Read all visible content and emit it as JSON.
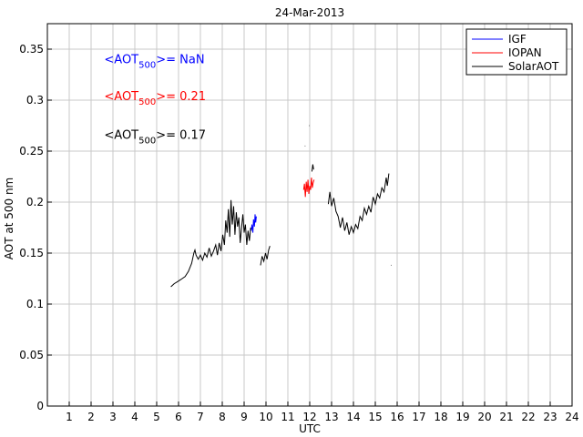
{
  "chart_data": {
    "type": "line",
    "title": "24-Mar-2013",
    "xlabel": "UTC",
    "ylabel": "AOT at 500 nm",
    "xlim": [
      0,
      24
    ],
    "ylim": [
      0,
      0.375
    ],
    "xticks": [
      1,
      2,
      3,
      4,
      5,
      6,
      7,
      8,
      9,
      10,
      11,
      12,
      13,
      14,
      15,
      16,
      17,
      18,
      19,
      20,
      21,
      22,
      23,
      24
    ],
    "yticks": [
      0,
      0.05,
      0.1,
      0.15,
      0.2,
      0.25,
      0.3,
      0.35
    ],
    "ytick_labels": [
      "0",
      "0.05",
      "0.1",
      "0.15",
      "0.2",
      "0.25",
      "0.3",
      "0.35"
    ],
    "grid": true,
    "legend_position": "top-right",
    "annotations": [
      {
        "series": "IGF",
        "prefix": "<AOT",
        "sub": "500",
        "suffix": ">=  NaN",
        "color": "#0000ff",
        "xpos": 2.6,
        "ypos": 0.336
      },
      {
        "series": "IOPAN",
        "prefix": "<AOT",
        "sub": "500",
        "suffix": ">= 0.21",
        "color": "#ff0000",
        "xpos": 2.6,
        "ypos": 0.3
      },
      {
        "series": "SolarAOT",
        "prefix": "<AOT",
        "sub": "500",
        "suffix": ">= 0.17",
        "color": "#000000",
        "xpos": 2.6,
        "ypos": 0.262
      }
    ],
    "series": [
      {
        "name": "IGF",
        "color": "#0000ff",
        "segments": [
          [
            [
              9.32,
              0.172
            ],
            [
              9.36,
              0.178
            ],
            [
              9.4,
              0.17
            ],
            [
              9.43,
              0.183
            ],
            [
              9.47,
              0.176
            ],
            [
              9.5,
              0.188
            ],
            [
              9.53,
              0.18
            ],
            [
              9.56,
              0.186
            ]
          ]
        ]
      },
      {
        "name": "IOPAN",
        "color": "#ff0000",
        "segments": [
          [
            [
              11.72,
              0.212
            ],
            [
              11.76,
              0.218
            ],
            [
              11.8,
              0.205
            ],
            [
              11.84,
              0.22
            ],
            [
              11.88,
              0.21
            ],
            [
              11.92,
              0.222
            ],
            [
              11.96,
              0.208
            ],
            [
              12.0,
              0.216
            ],
            [
              12.04,
              0.212
            ],
            [
              12.08,
              0.224
            ],
            [
              12.12,
              0.214
            ],
            [
              12.16,
              0.219
            ],
            [
              12.2,
              0.222
            ]
          ]
        ]
      },
      {
        "name": "SolarAOT",
        "color": "#000000",
        "segments": [
          [
            [
              5.65,
              0.117
            ],
            [
              5.8,
              0.12
            ],
            [
              5.95,
              0.122
            ],
            [
              6.1,
              0.124
            ],
            [
              6.3,
              0.127
            ],
            [
              6.45,
              0.132
            ],
            [
              6.6,
              0.14
            ],
            [
              6.7,
              0.15
            ],
            [
              6.75,
              0.153
            ],
            [
              6.8,
              0.148
            ],
            [
              6.9,
              0.144
            ],
            [
              7.0,
              0.148
            ],
            [
              7.1,
              0.143
            ],
            [
              7.2,
              0.15
            ],
            [
              7.3,
              0.146
            ],
            [
              7.4,
              0.155
            ],
            [
              7.5,
              0.147
            ],
            [
              7.6,
              0.152
            ],
            [
              7.7,
              0.158
            ],
            [
              7.78,
              0.148
            ],
            [
              7.86,
              0.16
            ],
            [
              7.94,
              0.152
            ],
            [
              8.02,
              0.168
            ],
            [
              8.1,
              0.158
            ],
            [
              8.16,
              0.182
            ],
            [
              8.22,
              0.17
            ],
            [
              8.28,
              0.193
            ],
            [
              8.34,
              0.166
            ],
            [
              8.4,
              0.202
            ],
            [
              8.46,
              0.178
            ],
            [
              8.52,
              0.196
            ],
            [
              8.58,
              0.168
            ],
            [
              8.64,
              0.19
            ],
            [
              8.7,
              0.176
            ],
            [
              8.76,
              0.185
            ],
            [
              8.82,
              0.16
            ],
            [
              8.88,
              0.174
            ],
            [
              8.94,
              0.188
            ],
            [
              9.0,
              0.17
            ],
            [
              9.06,
              0.178
            ],
            [
              9.12,
              0.158
            ],
            [
              9.18,
              0.172
            ],
            [
              9.24,
              0.162
            ],
            [
              9.3,
              0.175
            ]
          ],
          [
            [
              9.75,
              0.138
            ],
            [
              9.82,
              0.147
            ],
            [
              9.9,
              0.142
            ],
            [
              9.98,
              0.15
            ],
            [
              10.05,
              0.144
            ],
            [
              10.12,
              0.153
            ],
            [
              10.18,
              0.157
            ]
          ],
          [
            [
              11.78,
              0.255
            ],
            [
              11.8,
              0.255
            ]
          ],
          [
            [
              11.98,
              0.275
            ],
            [
              12.0,
              0.275
            ]
          ],
          [
            [
              12.1,
              0.23
            ],
            [
              12.14,
              0.237
            ],
            [
              12.18,
              0.232
            ]
          ],
          [
            [
              12.85,
              0.198
            ],
            [
              12.92,
              0.21
            ],
            [
              13.0,
              0.196
            ],
            [
              13.1,
              0.204
            ],
            [
              13.2,
              0.191
            ],
            [
              13.3,
              0.186
            ],
            [
              13.4,
              0.175
            ],
            [
              13.5,
              0.185
            ],
            [
              13.6,
              0.172
            ],
            [
              13.7,
              0.18
            ],
            [
              13.8,
              0.168
            ],
            [
              13.9,
              0.176
            ],
            [
              14.0,
              0.17
            ],
            [
              14.1,
              0.178
            ],
            [
              14.2,
              0.174
            ],
            [
              14.3,
              0.186
            ],
            [
              14.4,
              0.182
            ],
            [
              14.5,
              0.194
            ],
            [
              14.6,
              0.188
            ],
            [
              14.7,
              0.196
            ],
            [
              14.8,
              0.19
            ],
            [
              14.9,
              0.205
            ],
            [
              15.0,
              0.198
            ],
            [
              15.1,
              0.208
            ],
            [
              15.2,
              0.204
            ],
            [
              15.3,
              0.214
            ],
            [
              15.4,
              0.21
            ],
            [
              15.5,
              0.224
            ],
            [
              15.55,
              0.216
            ],
            [
              15.62,
              0.228
            ]
          ],
          [
            [
              15.72,
              0.138
            ],
            [
              15.74,
              0.138
            ]
          ]
        ]
      }
    ]
  }
}
